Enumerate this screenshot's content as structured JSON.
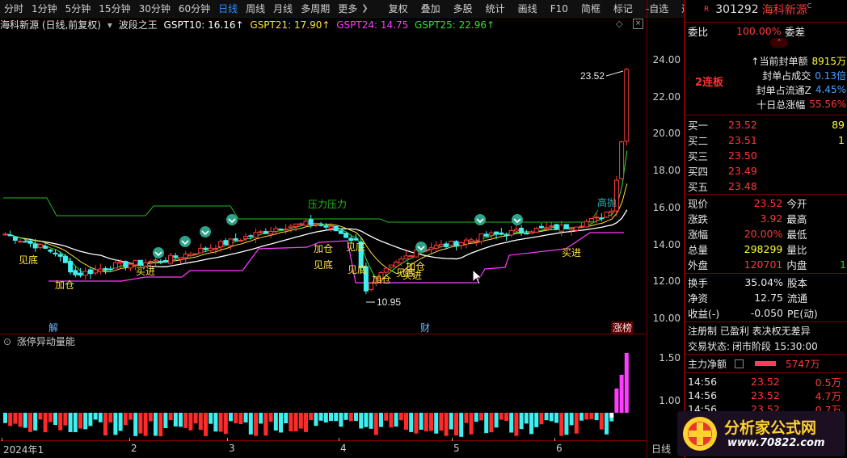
{
  "toolbar": {
    "periods": [
      "分时",
      "1分钟",
      "5分钟",
      "15分钟",
      "30分钟",
      "60分钟",
      "日线",
      "周线",
      "月线",
      "多周期",
      "更多"
    ],
    "active_period": "日线",
    "more_glyph": "❯",
    "tools": [
      "复权",
      "叠加",
      "多股",
      "统计",
      "画线",
      "F10",
      "简框",
      "标记",
      "-自选",
      "返回"
    ]
  },
  "indicator_bar": {
    "stock": "海科新源 (日线,前复权)",
    "indicator": "波段之王",
    "gspt10": "GSPT10: 16.16↑",
    "gspt21": "GSPT21: 17.90↑",
    "gspt24": "GSPT24: 14.75",
    "gspt25": "GSPT25: 22.96↑"
  },
  "colors": {
    "up": "#ff3b3b",
    "down": "#3ff0f0",
    "ma_white": "#ffffff",
    "ma_yellow": "#ffe23a",
    "ma_green": "#35e035",
    "line_magenta": "#ff3cff",
    "pressure": "#22bb22"
  },
  "price_axis": {
    "ticks": [
      "24.00",
      "22.00",
      "20.00",
      "18.00",
      "16.00",
      "14.00",
      "12.00",
      "10.00"
    ]
  },
  "chart_labels": {
    "high_price": "23.52",
    "low_price": "10.95",
    "pressure": "压力压力",
    "high_mark": "高抛",
    "signals": [
      "见底",
      "加仓",
      "买进",
      "加仓",
      "见底",
      "见底",
      "加仓",
      "见底",
      "买进",
      "加仓",
      "买进",
      "见底"
    ],
    "events": [
      "解",
      "财",
      "涨榜"
    ]
  },
  "volume_panel": {
    "title": "涨停异动量能",
    "ticks": [
      "1.50",
      "1.00"
    ]
  },
  "x_axis": {
    "labels": [
      "2024年1",
      "2",
      "3",
      "4",
      "5",
      "6"
    ],
    "period_label": "日线"
  },
  "right_panel": {
    "badge": "R",
    "code": "301292",
    "name": "海科新源",
    "superscript": "C",
    "weibi_label": "委比",
    "weibi_value": "100.00%",
    "weicha_label": "委差",
    "streak": "2连板",
    "seal_amount_label": "↑当前封单额",
    "seal_amount_value": "8915万",
    "seal_turnover_label": "封单占成交",
    "seal_turnover_value": "0.13倍",
    "seal_float_label": "封单占流通Z",
    "seal_float_value": "4.45%",
    "ten_day_label": "十日总涨幅",
    "ten_day_value": "55.56%",
    "bids": [
      {
        "label": "买一",
        "price": "23.52",
        "vol": "89"
      },
      {
        "label": "买二",
        "price": "23.51",
        "vol": "1"
      },
      {
        "label": "买三",
        "price": "23.50",
        "vol": ""
      },
      {
        "label": "买四",
        "price": "23.49",
        "vol": ""
      },
      {
        "label": "买五",
        "price": "23.48",
        "vol": ""
      }
    ],
    "quote_rows": [
      {
        "l1": "现价",
        "v1": "23.52",
        "c1": "red",
        "l2": "今开",
        "v2": ""
      },
      {
        "l1": "涨跌",
        "v1": "3.92",
        "c1": "red",
        "l2": "最高",
        "v2": ""
      },
      {
        "l1": "涨幅",
        "v1": "20.00%",
        "c1": "red",
        "l2": "最低",
        "v2": ""
      },
      {
        "l1": "总量",
        "v1": "298299",
        "c1": "yellow",
        "l2": "量比",
        "v2": ""
      },
      {
        "l1": "外盘",
        "v1": "120701",
        "c1": "red",
        "l2": "内盘",
        "v2": "1"
      }
    ],
    "stats_rows": [
      {
        "l1": "换手",
        "v1": "35.04%",
        "l2": "股本",
        "v2": ""
      },
      {
        "l1": "净资",
        "v1": "12.75",
        "l2": "流通",
        "v2": ""
      },
      {
        "l1": "收益(-)",
        "v1": "-0.050",
        "l2": "PE(动)",
        "v2": ""
      }
    ],
    "tags": "注册制 已盈利 表决权无差异",
    "trade_status_label": "交易状态:",
    "trade_status_value": "闭市阶段 15:30:00",
    "main_net_label": "主力净额",
    "main_net_value": "5747万",
    "ticks": [
      {
        "time": "14:56",
        "price": "23.52",
        "vol": "0.5万"
      },
      {
        "time": "14:56",
        "price": "23.52",
        "vol": "4.7万"
      },
      {
        "time": "14:56",
        "price": "23.52",
        "vol": "0.7万"
      }
    ]
  },
  "watermark": {
    "title": "分析家公式网",
    "url": "www.70822.com"
  }
}
